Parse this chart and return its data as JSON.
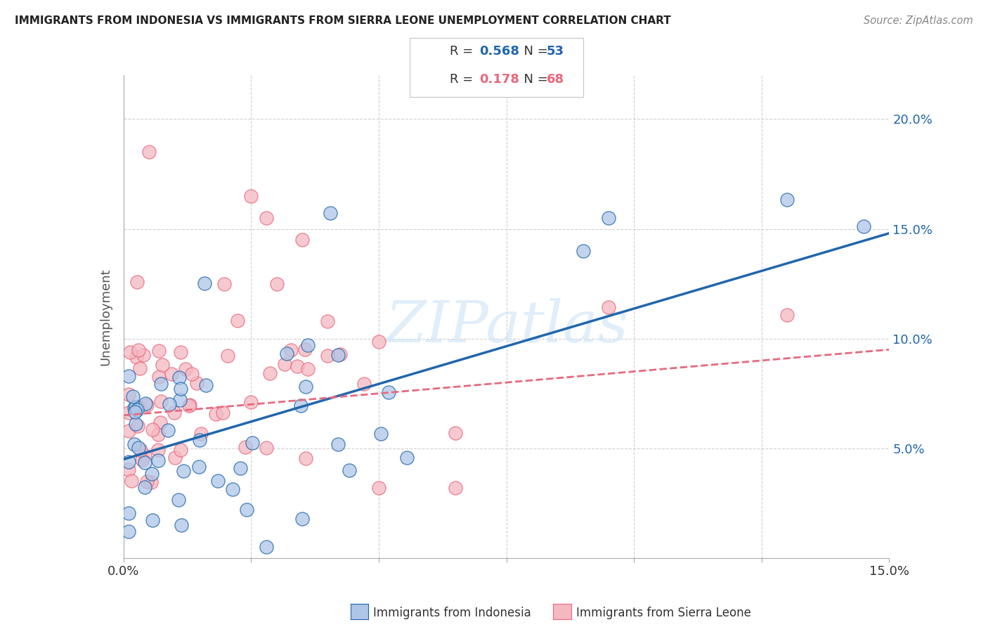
{
  "title": "IMMIGRANTS FROM INDONESIA VS IMMIGRANTS FROM SIERRA LEONE UNEMPLOYMENT CORRELATION CHART",
  "source": "Source: ZipAtlas.com",
  "ylabel": "Unemployment",
  "xlabel_indonesia": "Immigrants from Indonesia",
  "xlabel_sierraleone": "Immigrants from Sierra Leone",
  "xlim": [
    0.0,
    0.15
  ],
  "ylim": [
    0.0,
    0.22
  ],
  "ytick_vals": [
    0.0,
    0.05,
    0.1,
    0.15,
    0.2
  ],
  "ytick_labels": [
    "",
    "5.0%",
    "10.0%",
    "15.0%",
    "20.0%"
  ],
  "xtick_vals": [
    0.0,
    0.025,
    0.05,
    0.075,
    0.1,
    0.125,
    0.15
  ],
  "xtick_labels": [
    "0.0%",
    "",
    "",
    "",
    "",
    "",
    "15.0%"
  ],
  "color_indonesia": "#aec6e8",
  "color_sierraleone": "#f4b8c1",
  "line_color_indonesia": "#2166ac",
  "line_color_sierraleone": "#e8697d",
  "R_indonesia": 0.568,
  "N_indonesia": 53,
  "R_sierraleone": 0.178,
  "N_sierraleone": 68,
  "ind_line_start": 0.045,
  "ind_line_end": 0.148,
  "sl_line_start": 0.065,
  "sl_line_end": 0.095,
  "watermark": "ZIPatlas",
  "background_color": "#ffffff",
  "grid_color": "#d0d0d0"
}
